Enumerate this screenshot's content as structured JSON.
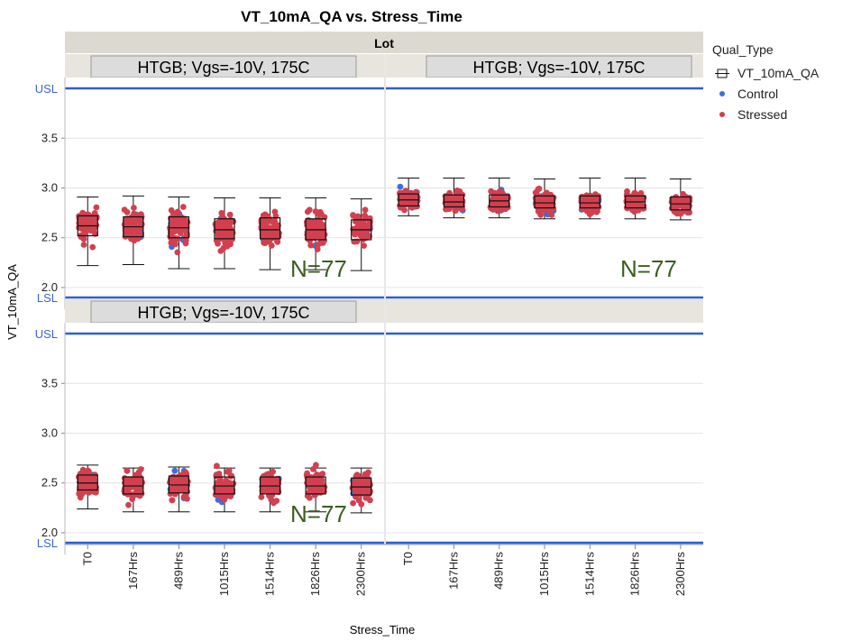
{
  "chart_data": {
    "type": "box-scatter",
    "title": "VT_10mA_QA vs. Stress_Time",
    "xlabel": "Stress_Time",
    "ylabel": "VT_10mA_QA",
    "facet_header": "Lot",
    "categories": [
      "T0",
      "167Hrs",
      "489Hrs",
      "1015Hrs",
      "1514Hrs",
      "1826Hrs",
      "2300Hrs"
    ],
    "y_ticks": [
      "2.0",
      "2.5",
      "3.0",
      "3.5"
    ],
    "ylim": [
      1.9,
      4.1
    ],
    "spec_limits": {
      "USL": 4.0,
      "LSL": 1.9,
      "usl_label": "USL",
      "lsl_label": "LSL"
    },
    "legend": {
      "title": "Qual_Type",
      "entries": [
        {
          "name": "VT_10mA_QA",
          "kind": "box"
        },
        {
          "name": "Control",
          "kind": "dot",
          "color": "#3b6fe0"
        },
        {
          "name": "Stressed",
          "kind": "dot",
          "color": "#d2404f"
        }
      ]
    },
    "panels": [
      {
        "label": "HTGB; Vgs=-10V, 175C",
        "n_label": "N=77",
        "boxes": [
          {
            "min": 2.22,
            "q1": 2.52,
            "median": 2.62,
            "q3": 2.72,
            "max": 2.91
          },
          {
            "min": 2.23,
            "q1": 2.51,
            "median": 2.61,
            "q3": 2.71,
            "max": 2.92
          },
          {
            "min": 2.19,
            "q1": 2.5,
            "median": 2.6,
            "q3": 2.71,
            "max": 2.91
          },
          {
            "min": 2.19,
            "q1": 2.49,
            "median": 2.58,
            "q3": 2.69,
            "max": 2.9
          },
          {
            "min": 2.18,
            "q1": 2.49,
            "median": 2.58,
            "q3": 2.7,
            "max": 2.9
          },
          {
            "min": 2.18,
            "q1": 2.48,
            "median": 2.58,
            "q3": 2.69,
            "max": 2.9
          },
          {
            "min": 2.17,
            "q1": 2.48,
            "median": 2.58,
            "q3": 2.68,
            "max": 2.89
          }
        ],
        "spread": [
          2.2,
          2.92
        ]
      },
      {
        "label": "HTGB; Vgs=-10V, 175C",
        "n_label": "N=77",
        "boxes": [
          {
            "min": 2.72,
            "q1": 2.82,
            "median": 2.88,
            "q3": 2.94,
            "max": 3.1
          },
          {
            "min": 2.7,
            "q1": 2.81,
            "median": 2.86,
            "q3": 2.93,
            "max": 3.1
          },
          {
            "min": 2.7,
            "q1": 2.81,
            "median": 2.87,
            "q3": 2.93,
            "max": 3.1
          },
          {
            "min": 2.69,
            "q1": 2.8,
            "median": 2.85,
            "q3": 2.92,
            "max": 3.09
          },
          {
            "min": 2.69,
            "q1": 2.8,
            "median": 2.85,
            "q3": 2.92,
            "max": 3.1
          },
          {
            "min": 2.69,
            "q1": 2.8,
            "median": 2.86,
            "q3": 2.92,
            "max": 3.1
          },
          {
            "min": 2.68,
            "q1": 2.78,
            "median": 2.84,
            "q3": 2.91,
            "max": 3.09
          }
        ],
        "spread": [
          2.68,
          3.11
        ]
      },
      {
        "label": "HTGB; Vgs=-10V, 175C",
        "n_label": "N=77",
        "boxes": [
          {
            "min": 2.24,
            "q1": 2.43,
            "median": 2.5,
            "q3": 2.58,
            "max": 2.68
          },
          {
            "min": 2.21,
            "q1": 2.39,
            "median": 2.47,
            "q3": 2.56,
            "max": 2.65
          },
          {
            "min": 2.21,
            "q1": 2.4,
            "median": 2.48,
            "q3": 2.57,
            "max": 2.66
          },
          {
            "min": 2.21,
            "q1": 2.39,
            "median": 2.47,
            "q3": 2.56,
            "max": 2.65
          },
          {
            "min": 2.21,
            "q1": 2.39,
            "median": 2.47,
            "q3": 2.56,
            "max": 2.65
          },
          {
            "min": 2.21,
            "q1": 2.39,
            "median": 2.47,
            "q3": 2.56,
            "max": 2.65
          },
          {
            "min": 2.2,
            "q1": 2.38,
            "median": 2.46,
            "q3": 2.55,
            "max": 2.65
          }
        ],
        "spread": [
          2.1,
          2.68
        ]
      },
      {
        "label": "",
        "n_label": "",
        "boxes": [],
        "spread": []
      }
    ],
    "grid": true,
    "legend_position": "right"
  }
}
